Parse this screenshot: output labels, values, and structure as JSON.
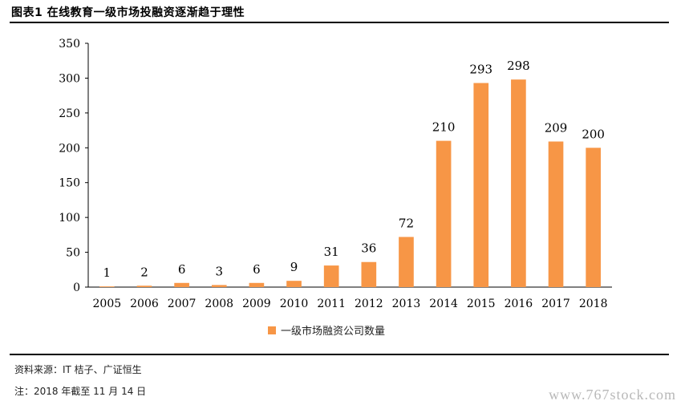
{
  "figure": {
    "title": "图表1  在线教育一级市场投融资逐渐趋于理性",
    "source": "资料来源：IT 桔子、广证恒生",
    "note": "注：2018 年截至 11 月 14 日",
    "watermark": "www.767stock.com"
  },
  "chart_data": {
    "type": "bar",
    "categories": [
      "2005",
      "2006",
      "2007",
      "2008",
      "2009",
      "2010",
      "2011",
      "2012",
      "2013",
      "2014",
      "2015",
      "2016",
      "2017",
      "2018"
    ],
    "series": [
      {
        "name": "一级市场融资公司数量",
        "values": [
          1,
          2,
          6,
          3,
          6,
          9,
          31,
          36,
          72,
          210,
          293,
          298,
          209,
          200
        ],
        "color": "#f79646"
      }
    ],
    "data_labels": [
      "1",
      "2",
      "6",
      "3",
      "6",
      "9",
      "31",
      "36",
      "72",
      "210",
      "293",
      "298",
      "209",
      "200"
    ],
    "ylim": [
      0,
      350
    ],
    "yticks": [
      "0",
      "50",
      "100",
      "150",
      "200",
      "250",
      "300",
      "350"
    ],
    "ytick_values": [
      0,
      50,
      100,
      150,
      200,
      250,
      300,
      350
    ],
    "xlabel": "",
    "ylabel": "",
    "grid": false,
    "legend_position": "bottom"
  }
}
